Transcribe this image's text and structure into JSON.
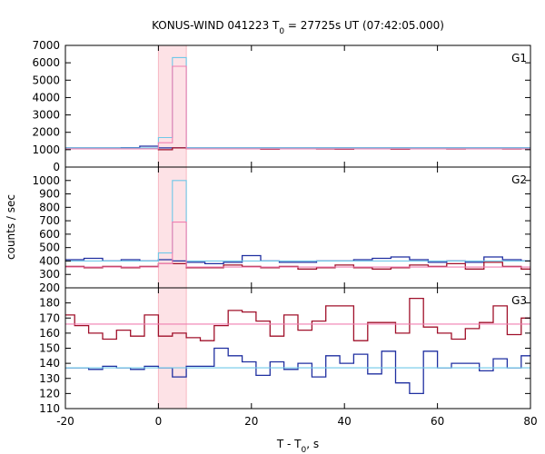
{
  "chart_data": {
    "type": "line",
    "title": "KONUS-WIND 041223 T",
    "title_sub": "0",
    "title_rest": " = 27725s UT (07:42:05.000)",
    "xlabel": "T - T",
    "xlabel_sub": "0",
    "xlabel_rest": ", s",
    "ylabel": "counts / sec",
    "xlim": [
      -20,
      80
    ],
    "xticks": [
      -20,
      0,
      20,
      40,
      60,
      80
    ],
    "highlight": {
      "from": 0,
      "to": 6
    },
    "colors": {
      "blue": "#1f2fa0",
      "red": "#a0102a",
      "cyan": "#6fc8e8",
      "pink": "#f07fb0",
      "shade": "#fde2e6"
    },
    "panels": [
      {
        "name": "G1",
        "ylim": [
          0,
          7000
        ],
        "yticks": [
          0,
          1000,
          2000,
          3000,
          4000,
          5000,
          6000,
          7000
        ],
        "bg_blue": 1100,
        "bg_red": 1050,
        "series": [
          {
            "name": "blue",
            "x": [
              -20,
              -16,
              -12,
              -8,
              -4,
              0,
              3,
              6,
              10,
              14,
              18,
              22,
              26,
              30,
              34,
              38,
              42,
              46,
              50,
              54,
              58,
              62,
              66,
              70,
              74,
              78,
              80
            ],
            "y": [
              1100,
              1100,
              1100,
              1120,
              1200,
              1100,
              1100,
              1100,
              1100,
              1100,
              1100,
              1100,
              1100,
              1100,
              1100,
              1100,
              1100,
              1100,
              1100,
              1100,
              1100,
              1100,
              1100,
              1100,
              1100,
              1100,
              1100
            ]
          },
          {
            "name": "red",
            "x": [
              -20,
              -16,
              -12,
              -8,
              -4,
              0,
              3,
              6,
              10,
              14,
              18,
              22,
              26,
              30,
              34,
              38,
              42,
              46,
              50,
              54,
              58,
              62,
              66,
              70,
              74,
              78,
              80
            ],
            "y": [
              1050,
              1050,
              1050,
              1060,
              1080,
              1000,
              1100,
              1060,
              1060,
              1070,
              1060,
              1030,
              1050,
              1060,
              1040,
              1030,
              1050,
              1060,
              1030,
              1050,
              1050,
              1040,
              1050,
              1060,
              1040,
              1060,
              1060
            ]
          },
          {
            "name": "cyan",
            "x": [
              -20,
              0,
              0,
              3,
              3,
              6,
              6,
              80
            ],
            "y": [
              1100,
              1100,
              1700,
              1700,
              6300,
              6300,
              1100,
              1100
            ]
          },
          {
            "name": "pink",
            "x": [
              -20,
              0,
              0,
              3,
              3,
              6,
              6,
              80
            ],
            "y": [
              1050,
              1050,
              1400,
              1400,
              5800,
              5800,
              1050,
              1050
            ]
          }
        ]
      },
      {
        "name": "G2",
        "ylim": [
          200,
          1100
        ],
        "yticks": [
          200,
          300,
          400,
          500,
          600,
          700,
          800,
          900,
          1000
        ],
        "bg_blue": 400,
        "bg_red": 355,
        "series": [
          {
            "name": "blue",
            "x": [
              -20,
              -16,
              -12,
              -8,
              -4,
              0,
              3,
              6,
              10,
              14,
              18,
              22,
              26,
              30,
              34,
              38,
              42,
              46,
              50,
              54,
              58,
              62,
              66,
              70,
              74,
              78,
              80
            ],
            "y": [
              410,
              420,
              400,
              410,
              400,
              410,
              400,
              390,
              380,
              390,
              440,
              400,
              390,
              390,
              400,
              400,
              410,
              420,
              430,
              410,
              390,
              400,
              390,
              430,
              410,
              400,
              400
            ]
          },
          {
            "name": "red",
            "x": [
              -20,
              -16,
              -12,
              -8,
              -4,
              0,
              3,
              6,
              10,
              14,
              18,
              22,
              26,
              30,
              34,
              38,
              42,
              46,
              50,
              54,
              58,
              62,
              66,
              70,
              74,
              78,
              80
            ],
            "y": [
              360,
              350,
              360,
              350,
              360,
              380,
              380,
              350,
              350,
              370,
              360,
              350,
              360,
              340,
              350,
              370,
              350,
              340,
              350,
              370,
              360,
              380,
              340,
              390,
              360,
              340,
              340
            ]
          },
          {
            "name": "cyan",
            "x": [
              -20,
              0,
              0,
              3,
              3,
              6,
              6,
              80
            ],
            "y": [
              400,
              400,
              460,
              460,
              1000,
              1000,
              400,
              400
            ]
          },
          {
            "name": "pink",
            "x": [
              -20,
              0,
              0,
              3,
              3,
              6,
              6,
              80
            ],
            "y": [
              355,
              355,
              380,
              380,
              690,
              690,
              355,
              355
            ]
          }
        ]
      },
      {
        "name": "G3",
        "ylim": [
          110,
          190
        ],
        "yticks": [
          110,
          120,
          130,
          140,
          150,
          160,
          170,
          180
        ],
        "bg_blue": 137,
        "bg_red": 166,
        "series": [
          {
            "name": "red",
            "x": [
              -20,
              -18,
              -15,
              -12,
              -9,
              -6,
              -3,
              0,
              3,
              6,
              9,
              12,
              15,
              18,
              21,
              24,
              27,
              30,
              33,
              36,
              39,
              42,
              45,
              48,
              51,
              54,
              57,
              60,
              63,
              66,
              69,
              72,
              75,
              78,
              80
            ],
            "y": [
              172,
              165,
              160,
              156,
              162,
              158,
              172,
              158,
              160,
              157,
              155,
              165,
              175,
              174,
              168,
              158,
              172,
              162,
              168,
              178,
              178,
              155,
              167,
              167,
              160,
              183,
              164,
              160,
              156,
              163,
              167,
              178,
              159,
              170,
              175
            ]
          },
          {
            "name": "blue",
            "x": [
              -20,
              -18,
              -15,
              -12,
              -9,
              -6,
              -3,
              0,
              3,
              6,
              9,
              12,
              15,
              18,
              21,
              24,
              27,
              30,
              33,
              36,
              39,
              42,
              45,
              48,
              51,
              54,
              57,
              60,
              63,
              66,
              69,
              72,
              75,
              78,
              80
            ],
            "y": [
              137,
              137,
              136,
              138,
              137,
              136,
              138,
              137,
              131,
              138,
              138,
              150,
              145,
              141,
              132,
              141,
              136,
              140,
              131,
              145,
              140,
              146,
              133,
              148,
              127,
              120,
              148,
              137,
              140,
              140,
              135,
              143,
              137,
              145,
              140
            ]
          },
          {
            "name": "pink",
            "x": [
              -20,
              80
            ],
            "y": [
              166,
              166
            ]
          },
          {
            "name": "cyan",
            "x": [
              -20,
              80
            ],
            "y": [
              137,
              137
            ]
          }
        ]
      }
    ]
  }
}
